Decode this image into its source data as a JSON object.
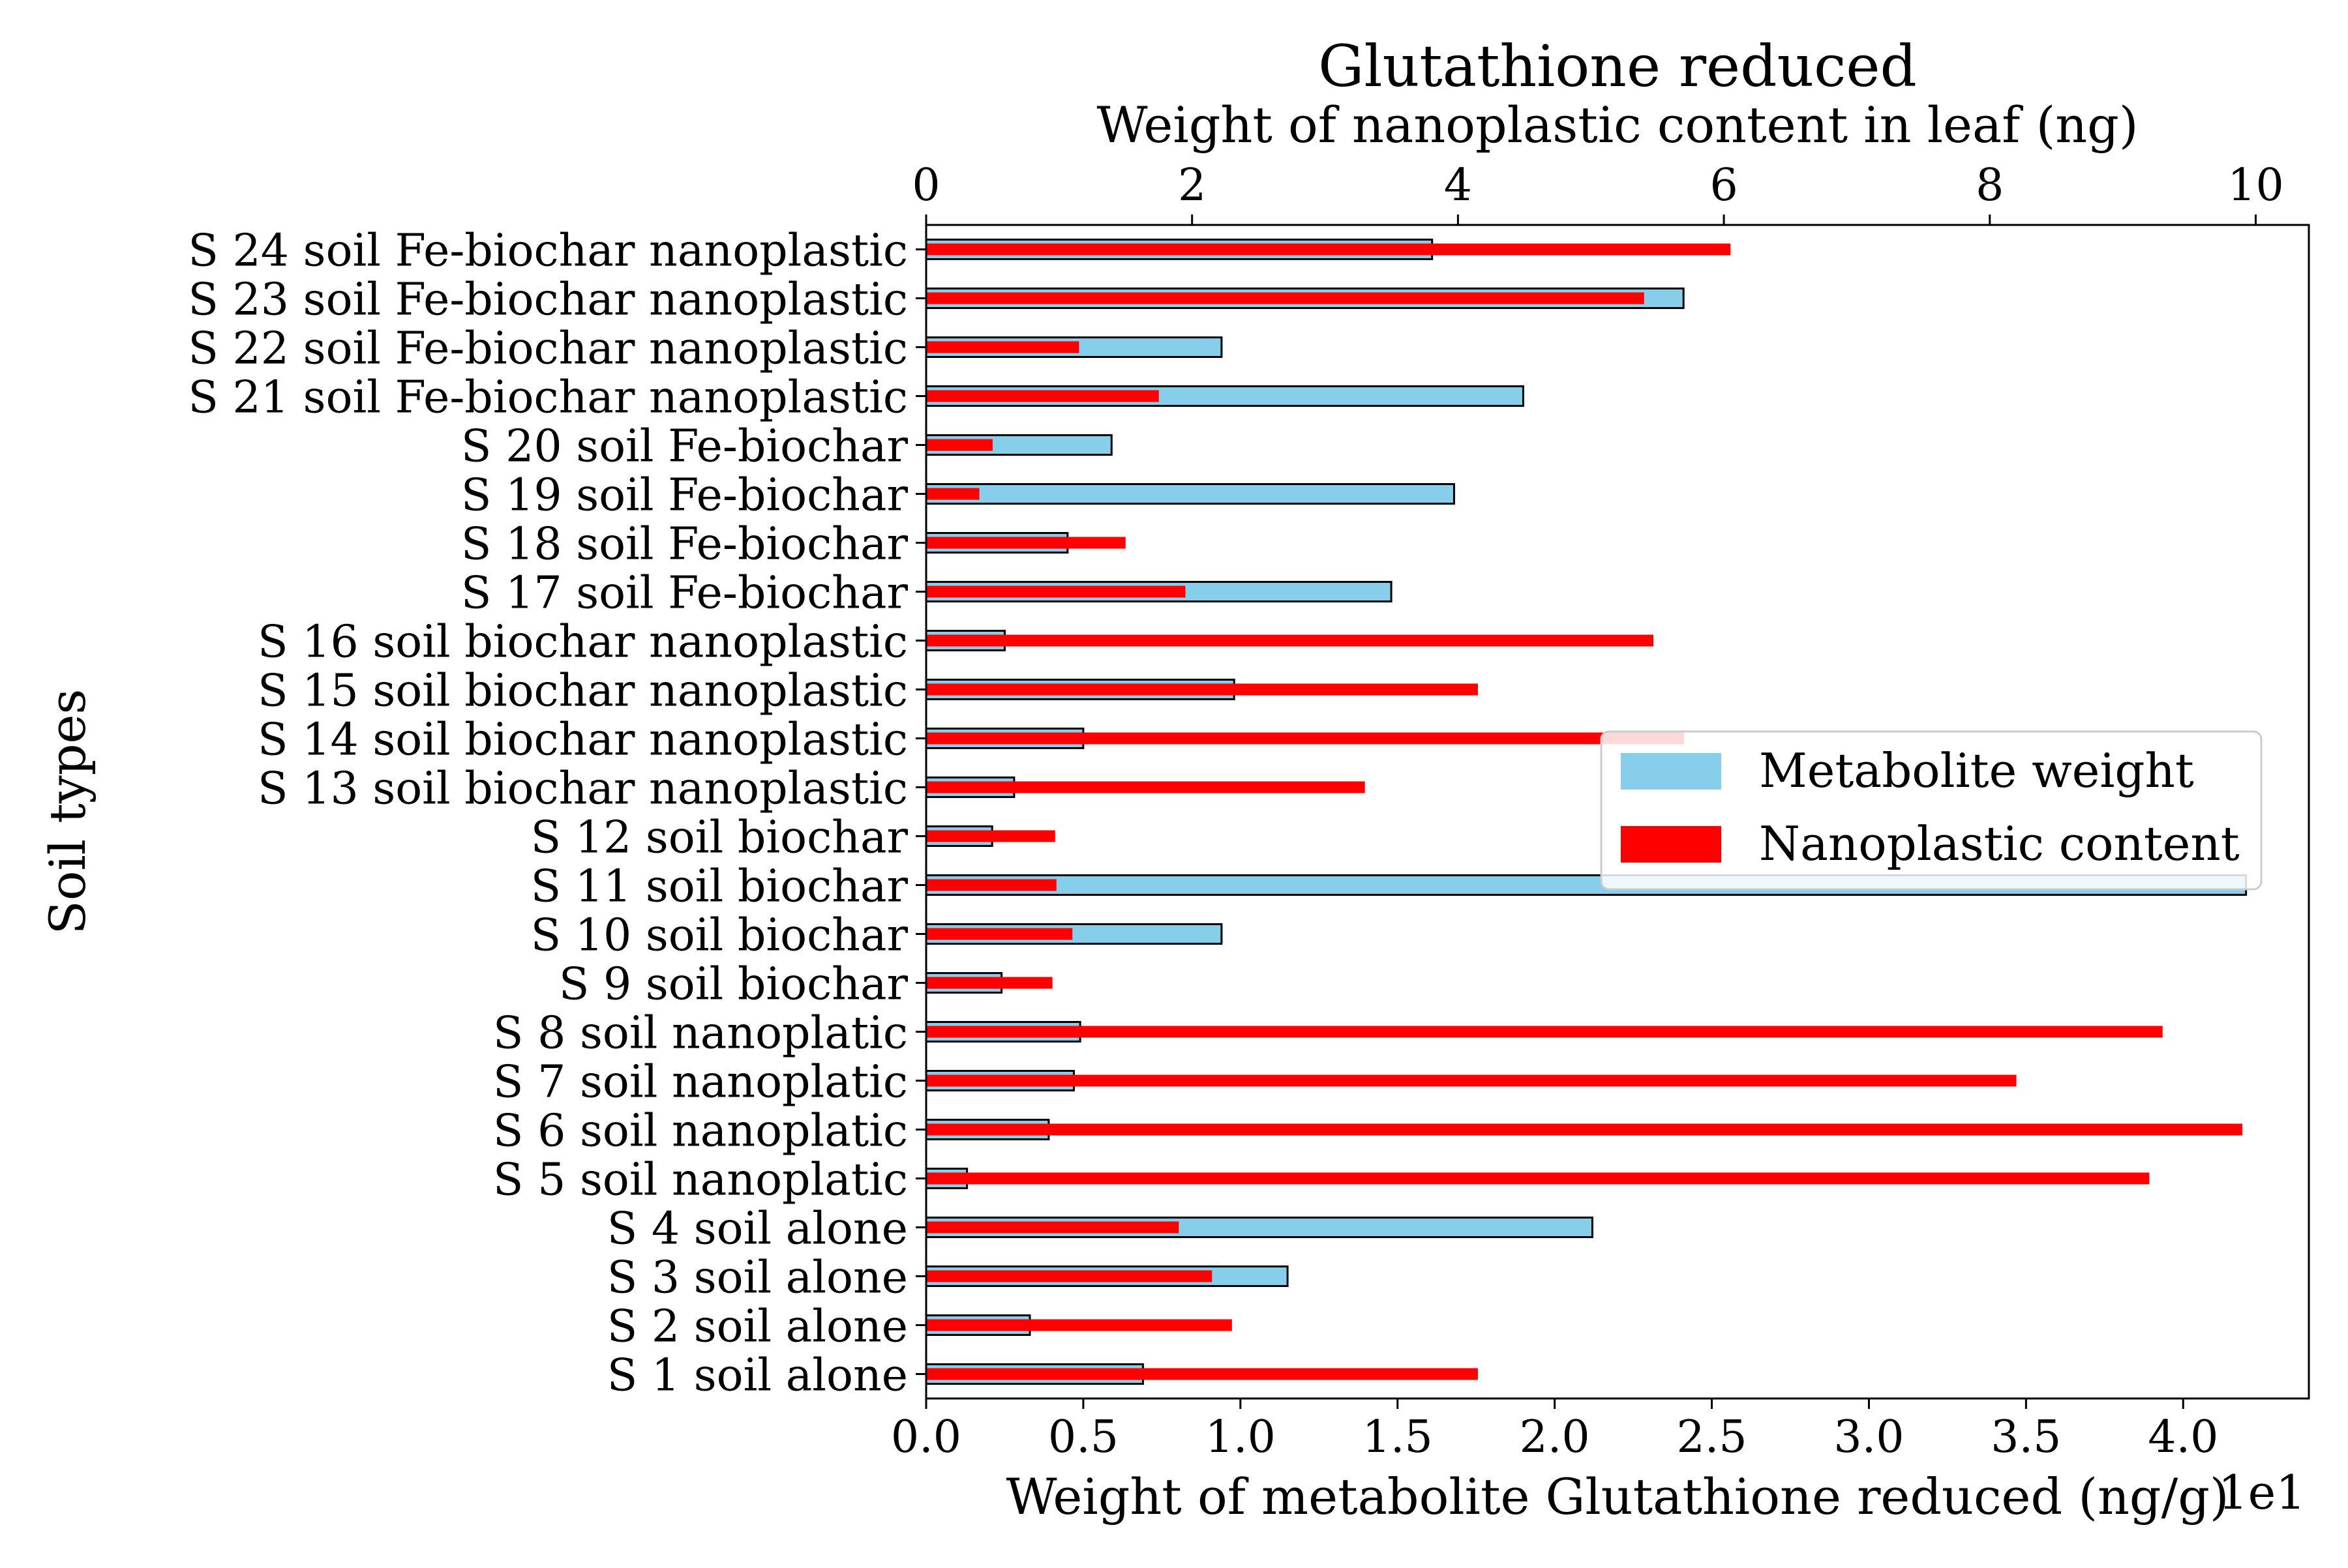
{
  "chart_data": {
    "type": "bar",
    "title": "Glutathione reduced",
    "title_color": "#a52a2a",
    "ylabel": "Soil types",
    "categories": [
      "S 1 soil alone",
      "S 2 soil alone",
      "S 3 soil alone",
      "S 4 soil alone",
      "S 5 soil nanoplatic",
      "S 6 soil nanoplatic",
      "S 7 soil nanoplatic",
      "S 8 soil nanoplatic",
      "S 9 soil biochar",
      "S 10 soil biochar",
      "S 11 soil biochar",
      "S 12 soil biochar",
      "S 13 soil biochar nanoplastic",
      "S 14 soil biochar nanoplastic",
      "S 15 soil biochar nanoplastic",
      "S 16 soil biochar nanoplastic",
      "S 17 soil Fe-biochar",
      "S 18 soil Fe-biochar",
      "S 19 soil Fe-biochar",
      "S 20 soil Fe-biochar",
      "S 21 soil Fe-biochar nanoplastic",
      "S 22 soil Fe-biochar nanoplastic",
      "S 23 soil Fe-biochar nanoplastic",
      "S 24 soil Fe-biochar nanoplastic"
    ],
    "bottom_axis": {
      "label": "Weight of metabolite Glutathione reduced (ng/g)",
      "offset_text": "1e1",
      "lim": [
        0,
        4.4
      ],
      "ticks": [
        0,
        0.5,
        1.0,
        1.5,
        2.0,
        2.5,
        3.0,
        3.5,
        4.0
      ],
      "tick_labels": [
        "0.0",
        "0.5",
        "1.0",
        "1.5",
        "2.0",
        "2.5",
        "3.0",
        "3.5",
        "4.0"
      ]
    },
    "top_axis": {
      "label": "Weight of nanoplastic content in leaf (ng)",
      "lim": [
        0,
        10.4
      ],
      "ticks": [
        0,
        2,
        4,
        6,
        8,
        10
      ],
      "tick_labels": [
        "0",
        "2",
        "4",
        "6",
        "8",
        "10"
      ]
    },
    "series": [
      {
        "name": "Metabolite weight",
        "axis": "bottom",
        "color": "#87ceeb",
        "edge_color": "#000000",
        "values": [
          0.69,
          0.33,
          1.15,
          2.12,
          0.13,
          0.39,
          0.47,
          0.49,
          0.24,
          0.94,
          4.2,
          0.21,
          0.28,
          0.5,
          0.98,
          0.25,
          1.48,
          0.45,
          1.68,
          0.59,
          1.9,
          0.94,
          2.41,
          1.61
        ]
      },
      {
        "name": "Nanoplastic content",
        "axis": "top",
        "color": "#ff0000",
        "values": [
          4.15,
          2.3,
          2.15,
          1.9,
          9.2,
          9.9,
          8.2,
          9.3,
          0.95,
          1.1,
          0.98,
          0.97,
          3.3,
          5.7,
          4.15,
          5.47,
          1.95,
          1.5,
          0.4,
          0.5,
          1.75,
          1.15,
          5.4,
          6.05
        ]
      }
    ],
    "legend": {
      "placement": "right",
      "entries": [
        "Metabolite weight",
        "Nanoplastic content"
      ]
    },
    "grid": false
  }
}
